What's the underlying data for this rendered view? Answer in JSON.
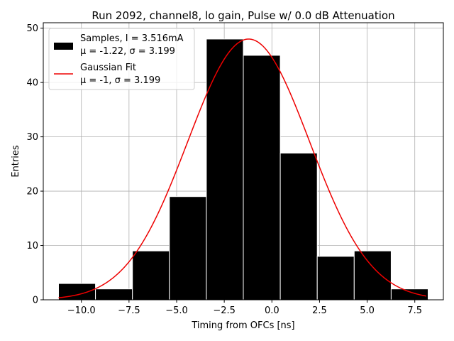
{
  "chart_data": {
    "type": "bar",
    "title": "Run 2092, channel8, lo gain, Pulse w/ 0.0 dB Attenuation",
    "xlabel": "Timing from OFCs [ns]",
    "ylabel": "Entries",
    "xlim": [
      -12.0,
      9.0
    ],
    "ylim": [
      0,
      51
    ],
    "xticks": [
      -10.0,
      -7.5,
      -5.0,
      -2.5,
      0.0,
      2.5,
      5.0,
      7.5
    ],
    "xtick_labels": [
      "−10.0",
      "−7.5",
      "−5.0",
      "−2.5",
      "0.0",
      "2.5",
      "5.0",
      "7.5"
    ],
    "yticks": [
      0,
      10,
      20,
      30,
      40,
      50
    ],
    "ytick_labels": [
      "0",
      "10",
      "20",
      "30",
      "40",
      "50"
    ],
    "grid": true,
    "bin_edges": [
      -11.2,
      -9.2,
      -7.2,
      -5.2,
      -3.2,
      -1.2,
      0.8,
      2.8,
      4.8,
      6.8,
      8.8
    ],
    "bin_draw_range": [
      -11.2,
      8.2
    ],
    "counts": [
      3,
      2,
      9,
      19,
      48,
      45,
      27,
      8,
      9,
      2
    ],
    "histogram_color": "#000000",
    "fit": {
      "type": "gaussian",
      "amplitude": 48.0,
      "mu": -1.22,
      "sigma": 3.199,
      "x_range": [
        -11.2,
        8.1
      ],
      "color": "#ee0000"
    },
    "legend": {
      "position": "upper-left",
      "entries": [
        {
          "kind": "patch",
          "color": "#000000",
          "line1": "Samples, I = 3.516mA",
          "line2": "μ = -1.22, σ = 3.199"
        },
        {
          "kind": "line",
          "color": "#ee0000",
          "line1": "Gaussian Fit",
          "line2": "μ = -1, σ = 3.199"
        }
      ]
    }
  }
}
